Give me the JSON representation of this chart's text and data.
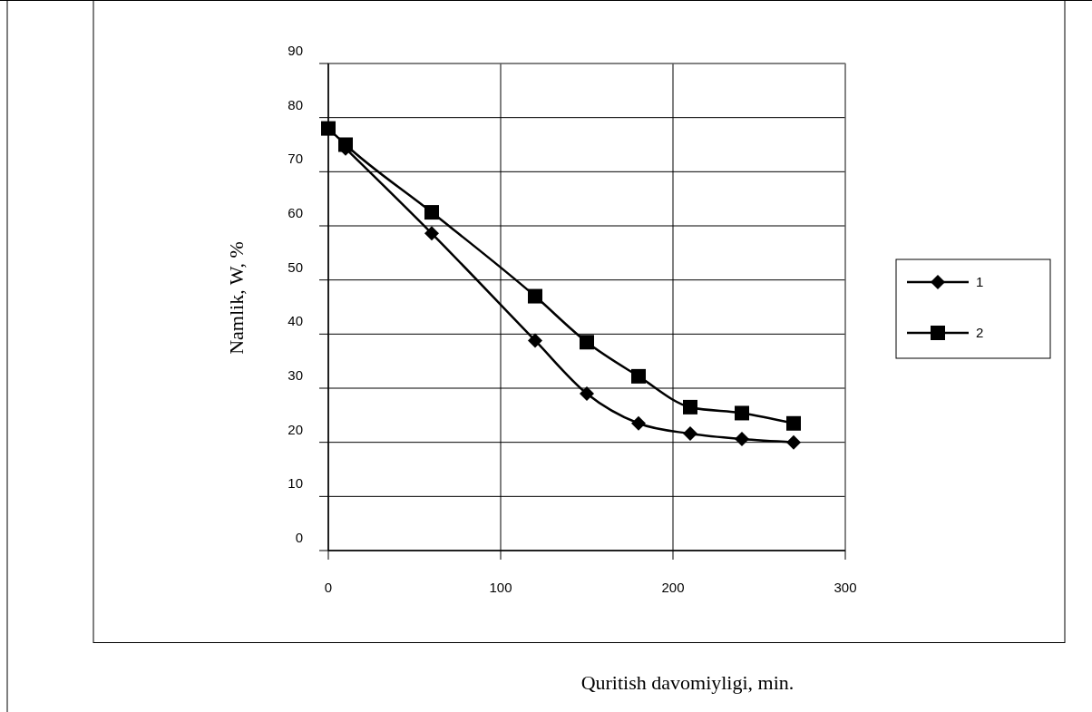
{
  "chart_data": {
    "type": "line",
    "xlabel": "Quritish davomiyligi, min.",
    "ylabel": "Namlik,  W, %",
    "x": [
      0,
      10,
      60,
      120,
      150,
      180,
      210,
      240,
      270
    ],
    "series": [
      {
        "name": "1",
        "color": "#000000",
        "marker": "diamond",
        "values": [
          null,
          74.3,
          58.6,
          38.8,
          29,
          23.5,
          21.6,
          20.6,
          20
        ]
      },
      {
        "name": "2",
        "color": "#000000",
        "marker": "square",
        "values": [
          78,
          75,
          62.5,
          47,
          38.5,
          32.2,
          26.5,
          25.4,
          23.5
        ]
      }
    ],
    "xlim": [
      0,
      300
    ],
    "xticks": [
      0,
      100,
      200,
      300
    ],
    "ylim": [
      0,
      90
    ],
    "yticks": [
      0,
      10,
      20,
      30,
      40,
      50,
      60,
      70,
      80,
      90
    ],
    "grid": true,
    "legend": "right",
    "line_style": "solid"
  }
}
